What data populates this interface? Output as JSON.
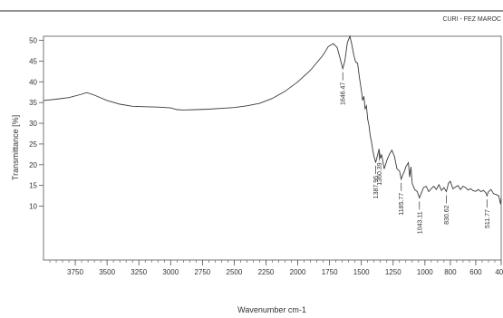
{
  "header": {
    "label": "CURI - FEZ MAROC"
  },
  "chart_data": {
    "type": "line",
    "title": "",
    "xlabel": "Wavenumber cm-1",
    "ylabel": "Transmittance [%]",
    "xlim": [
      4000,
      400
    ],
    "ylim": [
      -3,
      51
    ],
    "x_reversed": true,
    "grid": false,
    "legend": "none",
    "x_ticks": [
      "3750",
      "3500",
      "3250",
      "3000",
      "2750",
      "2500",
      "2250",
      "2000",
      "1750",
      "1500",
      "1250",
      "1000",
      "800",
      "600",
      "400"
    ],
    "y_ticks": [
      "10",
      "15",
      "20",
      "25",
      "30",
      "35",
      "40",
      "45",
      "50"
    ],
    "line_color": "#3a3a3a",
    "series": [
      {
        "x": [
          4000,
          3900,
          3800,
          3700,
          3660,
          3600,
          3500,
          3400,
          3300,
          3200,
          3100,
          3000,
          2950,
          2900,
          2800,
          2700,
          2600,
          2500,
          2400,
          2300,
          2200,
          2100,
          2000,
          1900,
          1800,
          1760,
          1720,
          1690,
          1665,
          1646,
          1630,
          1610,
          1590,
          1575,
          1560,
          1545,
          1530,
          1515,
          1500,
          1490,
          1480,
          1470,
          1460,
          1450,
          1440,
          1430,
          1420,
          1410,
          1400,
          1387,
          1375,
          1360,
          1350,
          1340,
          1320,
          1300,
          1280,
          1260,
          1240,
          1220,
          1200,
          1186,
          1175,
          1160,
          1150,
          1130,
          1120,
          1110,
          1100,
          1080,
          1060,
          1043,
          1030,
          1010,
          990,
          970,
          950,
          930,
          910,
          890,
          870,
          850,
          831,
          815,
          800,
          780,
          760,
          740,
          720,
          700,
          680,
          660,
          640,
          620,
          600,
          580,
          560,
          540,
          520,
          512,
          500,
          480,
          460,
          440,
          420,
          405,
          400
        ],
        "y": [
          35.5,
          35.8,
          36.2,
          37.0,
          37.4,
          36.8,
          35.5,
          34.6,
          34.1,
          34.0,
          33.9,
          33.7,
          33.3,
          33.2,
          33.3,
          33.4,
          33.6,
          33.8,
          34.2,
          34.8,
          36.0,
          37.7,
          40.0,
          42.8,
          46.5,
          48.5,
          49.2,
          48.3,
          45.5,
          43.2,
          45.0,
          49.5,
          51.0,
          49.0,
          46.5,
          44.8,
          44.5,
          41.0,
          38.0,
          35.5,
          36.5,
          33.5,
          34.2,
          31.0,
          29.5,
          27.0,
          25.5,
          23.5,
          22.0,
          20.5,
          22.0,
          23.8,
          21.5,
          22.5,
          19.0,
          21.0,
          22.5,
          23.5,
          22.0,
          19.0,
          18.5,
          16.5,
          17.5,
          18.5,
          19.5,
          20.5,
          17.0,
          19.5,
          15.5,
          14.0,
          13.5,
          12.0,
          13.0,
          14.5,
          14.8,
          13.5,
          14.2,
          14.8,
          14.0,
          15.2,
          13.8,
          14.5,
          13.5,
          15.5,
          16.0,
          14.2,
          14.6,
          15.0,
          14.0,
          14.8,
          14.5,
          13.9,
          14.2,
          13.7,
          13.6,
          14.0,
          13.5,
          13.8,
          13.2,
          12.5,
          13.5,
          14.0,
          13.0,
          12.8,
          12.5,
          10.5,
          12.0
        ]
      }
    ],
    "annotations": [
      {
        "label": "1646.47",
        "x": 1646
      },
      {
        "label": "1387.96",
        "x": 1388
      },
      {
        "label": "1360.39",
        "x": 1360
      },
      {
        "label": "1185.77",
        "x": 1186
      },
      {
        "label": "1043.11",
        "x": 1043
      },
      {
        "label": "830.62",
        "x": 831
      },
      {
        "label": "511.77",
        "x": 512
      }
    ]
  }
}
